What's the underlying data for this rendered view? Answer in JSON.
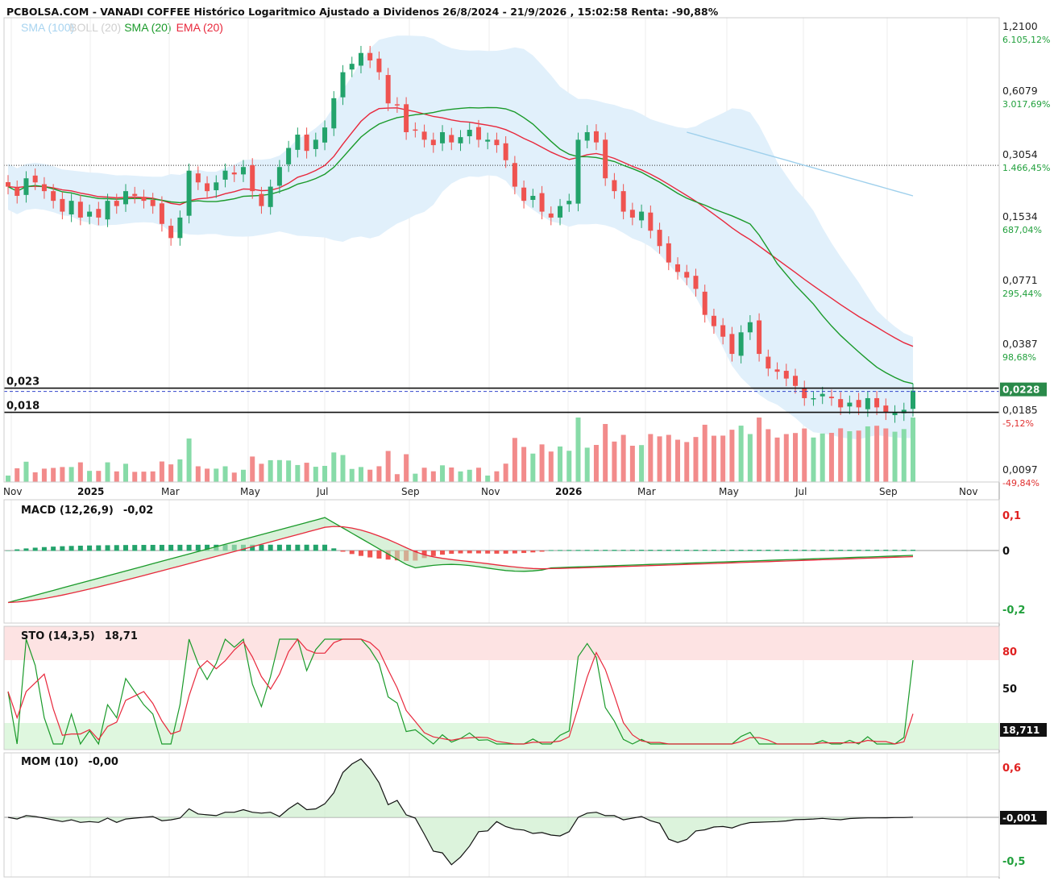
{
  "header": {
    "title": "PCBOLSA.COM - VANADI COFFEE Histórico Logaritmico Ajustado a Dividenos 26/8/2024 - 21/9/2026 , 15:02:58 Renta: -90,88%"
  },
  "legend": [
    {
      "label": "SMA (100)",
      "color": "#a8d4f0"
    },
    {
      "label": "BOLL (20)",
      "color": "#cfcfcf"
    },
    {
      "label": "SMA (20)",
      "color": "#1a9a2a"
    },
    {
      "label": "EMA (20)",
      "color": "#e8283c"
    }
  ],
  "colors": {
    "up": "#23a36b",
    "down": "#ef5350",
    "vol_up": "#87dba8",
    "vol_down": "#f28b8b",
    "sma20": "#1a9a2a",
    "ema20": "#e8283c",
    "sma100": "#9fd0ec",
    "boll_fill": "#e1f0fb",
    "price_tag": "#2a8a4a"
  },
  "price_axis": {
    "ticks": [
      {
        "label": "1,2100",
        "pct": "6.105,12%"
      },
      {
        "label": "0,6079",
        "pct": "3.017,69%"
      },
      {
        "label": "0,3054",
        "pct": "1.466,45%"
      },
      {
        "label": "0,1534",
        "pct": "687,04%"
      },
      {
        "label": "0,0771",
        "pct": "295,44%"
      },
      {
        "label": "0,0387",
        "pct": "98,68%"
      },
      {
        "label": "0,0185",
        "pct": "-5,12%"
      },
      {
        "label": "0,0097",
        "pct": "-49,84%"
      }
    ],
    "last_price": "0,0228",
    "level_023": "0,023",
    "level_018": "0,018"
  },
  "time_axis": {
    "labels": [
      "Nov",
      "2025",
      "Mar",
      "May",
      "Jul",
      "Sep",
      "Nov",
      "2026",
      "Mar",
      "May",
      "Jul",
      "Sep",
      "Nov"
    ]
  },
  "macd": {
    "title": "MACD (12,26,9)",
    "value": "-0,02",
    "ticks": [
      "0,1",
      "0",
      "-0,2"
    ]
  },
  "sto": {
    "title": "STO (14,3,5)",
    "value": "18,71",
    "ticks": [
      "80",
      "50"
    ],
    "last": "18,711"
  },
  "mom": {
    "title": "MOM (10)",
    "value": "-0,00",
    "ticks": [
      "0,6",
      "-0,5"
    ],
    "last": "-0,001"
  },
  "chart_data": {
    "type": "candlestick",
    "title": "PCBOLSA.COM - VANADI COFFEE Histórico Logaritmico Ajustado a Dividenos 26/8/2024 - 21/9/2026 , 15:02:58 Renta: -90,88%",
    "y_scale": "log",
    "ylim": [
      0.0097,
      1.21
    ],
    "period": [
      "26/8/2024",
      "21/9/2026"
    ],
    "close_series": [
      0.21,
      0.19,
      0.23,
      0.22,
      0.2,
      0.18,
      0.16,
      0.18,
      0.15,
      0.16,
      0.15,
      0.18,
      0.17,
      0.2,
      0.19,
      0.18,
      0.17,
      0.14,
      0.12,
      0.15,
      0.25,
      0.22,
      0.2,
      0.22,
      0.25,
      0.24,
      0.26,
      0.2,
      0.17,
      0.21,
      0.26,
      0.32,
      0.37,
      0.31,
      0.35,
      0.4,
      0.55,
      0.73,
      0.8,
      0.9,
      0.83,
      0.73,
      0.52,
      0.51,
      0.38,
      0.39,
      0.35,
      0.33,
      0.38,
      0.34,
      0.36,
      0.39,
      0.35,
      0.35,
      0.33,
      0.28,
      0.21,
      0.18,
      0.19,
      0.16,
      0.15,
      0.17,
      0.18,
      0.35,
      0.38,
      0.34,
      0.23,
      0.2,
      0.16,
      0.15,
      0.16,
      0.13,
      0.11,
      0.092,
      0.083,
      0.078,
      0.069,
      0.052,
      0.046,
      0.041,
      0.034,
      0.043,
      0.048,
      0.034,
      0.029,
      0.028,
      0.026,
      0.024,
      0.021,
      0.021,
      0.022,
      0.021,
      0.019,
      0.02,
      0.019,
      0.021,
      0.019,
      0.018,
      0.018,
      0.0185,
      0.0228
    ],
    "candles_approx": 101,
    "indicators": {
      "sma20_trend": "rises to ~0.45 around Sep 2025, then declines to ~0.026",
      "ema20_trend": "peaks ~0.41 around Aug 2025, declines to ~0.033",
      "sma100_visible_range": "0.38 (Jan 2026) to 0.19 (Sep 2026)"
    },
    "macd_range": [
      -0.22,
      0.1
    ],
    "sto_levels": [
      80,
      50
    ],
    "mom_range": [
      -0.55,
      0.65
    ]
  }
}
